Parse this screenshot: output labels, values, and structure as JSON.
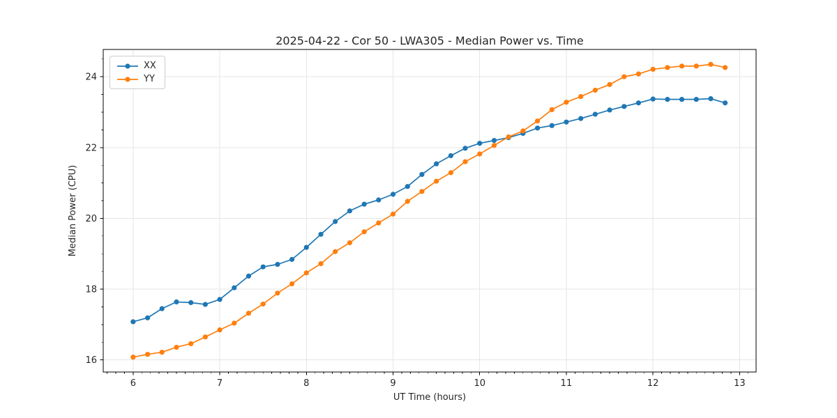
{
  "chart_data": {
    "type": "line",
    "title": "2025-04-22 - Cor 50 - LWA305 - Median Power vs. Time",
    "xlabel": "UT Time (hours)",
    "ylabel": "Median Power (CPU)",
    "x": [
      6.0,
      6.167,
      6.333,
      6.5,
      6.667,
      6.833,
      7.0,
      7.167,
      7.333,
      7.5,
      7.667,
      7.833,
      8.0,
      8.167,
      8.333,
      8.5,
      8.667,
      8.833,
      9.0,
      9.167,
      9.333,
      9.5,
      9.667,
      9.833,
      10.0,
      10.167,
      10.333,
      10.5,
      10.667,
      10.833,
      11.0,
      11.167,
      11.333,
      11.5,
      11.667,
      11.833,
      12.0,
      12.167,
      12.333,
      12.5,
      12.667,
      12.833
    ],
    "series": [
      {
        "name": "XX",
        "color": "#1f77b4",
        "values": [
          17.08,
          17.19,
          17.45,
          17.64,
          17.62,
          17.57,
          17.71,
          18.04,
          18.37,
          18.63,
          18.7,
          18.84,
          19.18,
          19.55,
          19.91,
          20.21,
          20.4,
          20.52,
          20.68,
          20.9,
          21.24,
          21.54,
          21.77,
          21.98,
          22.12,
          22.2,
          22.28,
          22.4,
          22.55,
          22.62,
          22.72,
          22.82,
          22.94,
          23.06,
          23.16,
          23.26,
          23.37,
          23.36,
          23.36,
          23.36,
          23.38,
          23.26
        ]
      },
      {
        "name": "YY",
        "color": "#ff7f0e",
        "values": [
          16.08,
          16.16,
          16.22,
          16.36,
          16.46,
          16.65,
          16.85,
          17.04,
          17.32,
          17.58,
          17.89,
          18.15,
          18.46,
          18.72,
          19.06,
          19.31,
          19.62,
          19.87,
          20.12,
          20.48,
          20.76,
          21.05,
          21.29,
          21.6,
          21.82,
          22.06,
          22.3,
          22.47,
          22.75,
          23.07,
          23.28,
          23.44,
          23.62,
          23.78,
          24.0,
          24.08,
          24.21,
          24.26,
          24.3,
          24.3,
          24.35,
          24.26
        ]
      }
    ],
    "xlim": [
      5.655,
      13.19
    ],
    "ylim": [
      15.66,
      24.77
    ],
    "xticks": [
      6,
      7,
      8,
      9,
      10,
      11,
      12,
      13
    ],
    "yticks": [
      16,
      18,
      20,
      22,
      24
    ],
    "x_minor_step": 0.1,
    "y_minor_step": 0.5,
    "grid": true,
    "legend": {
      "position": "upper-left",
      "items": [
        "XX",
        "YY"
      ]
    },
    "colors": {
      "grid": "#e6e6e6",
      "spine": "#000000",
      "text": "#262626"
    }
  }
}
